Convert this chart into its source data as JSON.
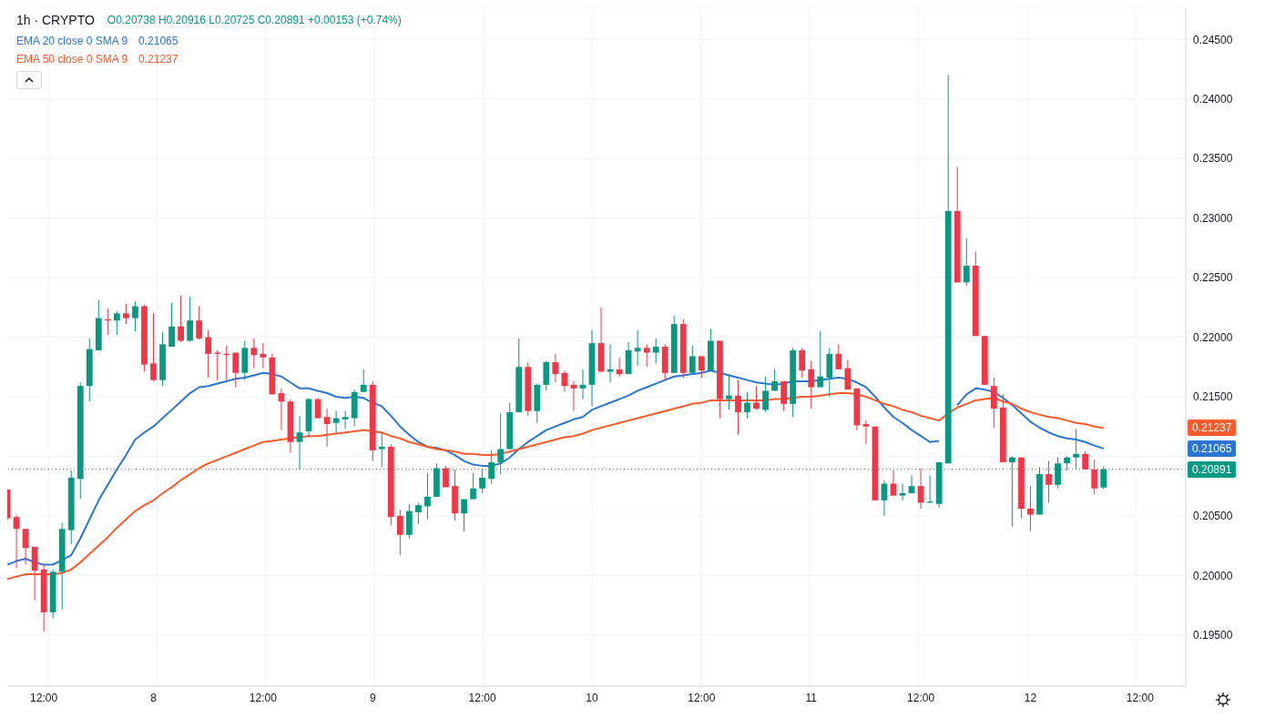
{
  "chart_data": {
    "type": "candlestick",
    "title": "1h · CRYPTO",
    "categories": [
      null,
      null,
      null,
      null,
      "12:00",
      null,
      null,
      null,
      null,
      null,
      null,
      null,
      null,
      null,
      null,
      null,
      "8",
      null,
      null,
      null,
      null,
      null,
      null,
      null,
      null,
      null,
      null,
      null,
      "12:00",
      null,
      null,
      null,
      null,
      null,
      null,
      null,
      null,
      null,
      null,
      null,
      "9",
      null,
      null,
      null,
      null,
      null,
      null,
      null,
      null,
      null,
      null,
      null,
      "12:00",
      null,
      null,
      null,
      null,
      null,
      null,
      null,
      null,
      null,
      null,
      null,
      "10",
      null,
      null,
      null,
      null,
      null,
      null,
      null,
      null,
      null,
      null,
      null,
      "12:00",
      null,
      null,
      null,
      null,
      null,
      null,
      null,
      null,
      null,
      null,
      null,
      "11",
      null,
      null,
      null,
      null,
      null,
      null,
      null,
      null,
      null,
      null,
      null,
      "12:00",
      null,
      null,
      null,
      null,
      null,
      null,
      null,
      null,
      null,
      null,
      null,
      "12",
      null,
      null,
      null,
      null,
      null,
      null,
      null,
      null,
      null,
      null,
      null,
      "12:00",
      null,
      null,
      null,
      null,
      null
    ],
    "ohlc": [
      [
        0.2072,
        0.2073,
        0.2046,
        0.2048
      ],
      [
        0.2049,
        0.2051,
        0.2006,
        0.2039
      ],
      [
        0.2039,
        0.2039,
        0.2009,
        0.2023
      ],
      [
        0.2024,
        0.2024,
        0.1979,
        0.2004
      ],
      [
        0.2005,
        0.2009,
        0.1953,
        0.1969
      ],
      [
        0.1969,
        0.2005,
        0.1964,
        0.2003
      ],
      [
        0.2003,
        0.2044,
        0.1971,
        0.2039
      ],
      [
        0.2038,
        0.2088,
        0.2026,
        0.2082
      ],
      [
        0.2081,
        0.2162,
        0.2064,
        0.2159
      ],
      [
        0.2159,
        0.2199,
        0.2146,
        0.219
      ],
      [
        0.2189,
        0.2231,
        0.2189,
        0.2216
      ],
      [
        0.2215,
        0.2224,
        0.2202,
        0.2214
      ],
      [
        0.2214,
        0.2222,
        0.2202,
        0.222
      ],
      [
        0.222,
        0.2228,
        0.2211,
        0.2216
      ],
      [
        0.2216,
        0.223,
        0.2205,
        0.2226
      ],
      [
        0.2226,
        0.2227,
        0.2171,
        0.2177
      ],
      [
        0.2178,
        0.222,
        0.2163,
        0.2164
      ],
      [
        0.2164,
        0.2204,
        0.2159,
        0.2194
      ],
      [
        0.2192,
        0.2229,
        0.2192,
        0.2209
      ],
      [
        0.2209,
        0.2235,
        0.2196,
        0.2197
      ],
      [
        0.2197,
        0.2234,
        0.2196,
        0.2214
      ],
      [
        0.2214,
        0.2226,
        0.2198,
        0.2199
      ],
      [
        0.22,
        0.2206,
        0.2166,
        0.2186
      ],
      [
        0.2187,
        0.2189,
        0.2164,
        0.2186
      ],
      [
        0.2186,
        0.2193,
        0.2164,
        0.2185
      ],
      [
        0.2187,
        0.2187,
        0.2158,
        0.217
      ],
      [
        0.217,
        0.2197,
        0.2164,
        0.2191
      ],
      [
        0.2191,
        0.2199,
        0.2174,
        0.2185
      ],
      [
        0.2186,
        0.2195,
        0.2174,
        0.2183
      ],
      [
        0.2183,
        0.2186,
        0.2152,
        0.2152
      ],
      [
        0.2153,
        0.2157,
        0.2122,
        0.2146
      ],
      [
        0.2146,
        0.2148,
        0.2103,
        0.2112
      ],
      [
        0.2112,
        0.2134,
        0.2089,
        0.212
      ],
      [
        0.2121,
        0.2149,
        0.2116,
        0.2148
      ],
      [
        0.2148,
        0.2149,
        0.2132,
        0.2132
      ],
      [
        0.2133,
        0.214,
        0.2108,
        0.2127
      ],
      [
        0.2128,
        0.2138,
        0.2119,
        0.2132
      ],
      [
        0.2131,
        0.2138,
        0.2123,
        0.2133
      ],
      [
        0.2132,
        0.2156,
        0.2125,
        0.2154
      ],
      [
        0.2154,
        0.2173,
        0.2154,
        0.216
      ],
      [
        0.216,
        0.2163,
        0.2096,
        0.2105
      ],
      [
        0.2106,
        0.212,
        0.2091,
        0.2108
      ],
      [
        0.2108,
        0.211,
        0.2042,
        0.2049
      ],
      [
        0.205,
        0.2055,
        0.2017,
        0.2034
      ],
      [
        0.2034,
        0.206,
        0.2031,
        0.2054
      ],
      [
        0.2053,
        0.2061,
        0.2043,
        0.2059
      ],
      [
        0.2058,
        0.2086,
        0.2047,
        0.2066
      ],
      [
        0.2066,
        0.2094,
        0.2066,
        0.209
      ],
      [
        0.209,
        0.2092,
        0.2074,
        0.2074
      ],
      [
        0.2075,
        0.2089,
        0.2046,
        0.2052
      ],
      [
        0.2052,
        0.2064,
        0.2037,
        0.2064
      ],
      [
        0.2064,
        0.2086,
        0.2064,
        0.2073
      ],
      [
        0.2073,
        0.2089,
        0.2069,
        0.2082
      ],
      [
        0.2081,
        0.2105,
        0.2077,
        0.2095
      ],
      [
        0.2095,
        0.2136,
        0.2085,
        0.2106
      ],
      [
        0.2106,
        0.2145,
        0.2106,
        0.2137
      ],
      [
        0.2137,
        0.2199,
        0.2137,
        0.2175
      ],
      [
        0.2175,
        0.2179,
        0.2134,
        0.2138
      ],
      [
        0.2138,
        0.2161,
        0.2128,
        0.216
      ],
      [
        0.216,
        0.218,
        0.2155,
        0.2179
      ],
      [
        0.2179,
        0.2186,
        0.2162,
        0.2169
      ],
      [
        0.217,
        0.2172,
        0.2154,
        0.2159
      ],
      [
        0.216,
        0.2163,
        0.2138,
        0.2157
      ],
      [
        0.2157,
        0.2173,
        0.2148,
        0.216
      ],
      [
        0.216,
        0.2206,
        0.2142,
        0.2195
      ],
      [
        0.2195,
        0.2225,
        0.2171,
        0.2171
      ],
      [
        0.2171,
        0.2194,
        0.2162,
        0.2173
      ],
      [
        0.2173,
        0.2183,
        0.2167,
        0.2169
      ],
      [
        0.2169,
        0.2196,
        0.2169,
        0.2189
      ],
      [
        0.2188,
        0.2206,
        0.2176,
        0.2191
      ],
      [
        0.2191,
        0.2194,
        0.2175,
        0.2187
      ],
      [
        0.2187,
        0.2199,
        0.2178,
        0.2192
      ],
      [
        0.2192,
        0.2194,
        0.2164,
        0.217
      ],
      [
        0.217,
        0.2218,
        0.217,
        0.2211
      ],
      [
        0.2211,
        0.2215,
        0.2166,
        0.217
      ],
      [
        0.217,
        0.2193,
        0.217,
        0.2184
      ],
      [
        0.2184,
        0.2184,
        0.2166,
        0.2172
      ],
      [
        0.2172,
        0.2207,
        0.2172,
        0.2197
      ],
      [
        0.2197,
        0.2197,
        0.2132,
        0.2148
      ],
      [
        0.2148,
        0.2169,
        0.2139,
        0.2151
      ],
      [
        0.2151,
        0.2164,
        0.2118,
        0.2137
      ],
      [
        0.2137,
        0.2154,
        0.2132,
        0.2145
      ],
      [
        0.2145,
        0.2159,
        0.2139,
        0.214
      ],
      [
        0.2139,
        0.2167,
        0.2137,
        0.2155
      ],
      [
        0.2155,
        0.2173,
        0.2155,
        0.2163
      ],
      [
        0.2163,
        0.2163,
        0.2138,
        0.2144
      ],
      [
        0.2144,
        0.2191,
        0.2133,
        0.2189
      ],
      [
        0.2189,
        0.2191,
        0.2166,
        0.2172
      ],
      [
        0.2173,
        0.218,
        0.214,
        0.2158
      ],
      [
        0.2158,
        0.2205,
        0.2158,
        0.2167
      ],
      [
        0.2166,
        0.2191,
        0.215,
        0.2186
      ],
      [
        0.2186,
        0.2194,
        0.2173,
        0.2173
      ],
      [
        0.2174,
        0.2181,
        0.2156,
        0.2156
      ],
      [
        0.2157,
        0.2157,
        0.2122,
        0.2126
      ],
      [
        0.2127,
        0.213,
        0.211,
        0.2125
      ],
      [
        0.2125,
        0.2125,
        0.2063,
        0.2063
      ],
      [
        0.2063,
        0.208,
        0.205,
        0.2077
      ],
      [
        0.2077,
        0.2088,
        0.2067,
        0.2067
      ],
      [
        0.2067,
        0.2077,
        0.2063,
        0.2069
      ],
      [
        0.2069,
        0.2084,
        0.2069,
        0.2075
      ],
      [
        0.2075,
        0.209,
        0.2056,
        0.2061
      ],
      [
        0.2061,
        0.2084,
        0.2061,
        0.2062
      ],
      [
        0.206,
        0.2095,
        0.2057,
        0.2095
      ],
      [
        0.2094,
        0.242,
        0.2094,
        0.2306
      ],
      [
        0.2306,
        0.2343,
        0.2246,
        0.2246
      ],
      [
        0.2246,
        0.2283,
        0.2243,
        0.226
      ],
      [
        0.226,
        0.2272,
        0.2201,
        0.2201
      ],
      [
        0.2201,
        0.2201,
        0.216,
        0.216
      ],
      [
        0.2159,
        0.2166,
        0.2124,
        0.214
      ],
      [
        0.2141,
        0.2152,
        0.2095,
        0.2095
      ],
      [
        0.2095,
        0.21,
        0.2041,
        0.2099
      ],
      [
        0.2099,
        0.2099,
        0.2048,
        0.2056
      ],
      [
        0.2056,
        0.2075,
        0.2037,
        0.2051
      ],
      [
        0.2051,
        0.2091,
        0.2051,
        0.2085
      ],
      [
        0.2085,
        0.2096,
        0.2061,
        0.2076
      ],
      [
        0.2076,
        0.2099,
        0.2073,
        0.2094
      ],
      [
        0.2094,
        0.21,
        0.2088,
        0.2099
      ],
      [
        0.2099,
        0.2123,
        0.2089,
        0.2102
      ],
      [
        0.2102,
        0.2104,
        0.2089,
        0.2089
      ],
      [
        0.2089,
        0.2097,
        0.2068,
        0.2073
      ],
      [
        0.20738,
        0.20916,
        0.20725,
        0.20891
      ],
      null,
      null,
      null,
      null,
      null,
      null,
      null,
      null,
      null
    ],
    "colors": [
      "#f23645",
      "#f23645",
      "#f23645",
      "#f23645",
      "#f23645",
      "#089981",
      "#089981",
      "#089981",
      "#089981",
      "#089981",
      "#089981",
      "#f23645",
      "#089981",
      "#f23645",
      "#089981",
      "#f23645",
      "#f23645",
      "#089981",
      "#089981",
      "#f23645",
      "#089981",
      "#f23645",
      "#f23645",
      "#f23645",
      "#f23645",
      "#f23645",
      "#089981",
      "#f23645",
      "#f23645",
      "#f23645",
      "#f23645",
      "#f23645",
      "#089981",
      "#089981",
      "#f23645",
      "#f23645",
      "#089981",
      "#089981",
      "#089981",
      "#089981",
      "#f23645",
      "#089981",
      "#f23645",
      "#f23645",
      "#089981",
      "#089981",
      "#089981",
      "#089981",
      "#f23645",
      "#f23645",
      "#089981",
      "#089981",
      "#089981",
      "#089981",
      "#089981",
      "#089981",
      "#089981",
      "#f23645",
      "#089981",
      "#089981",
      "#f23645",
      "#f23645",
      "#f23645",
      "#089981",
      "#089981",
      "#f23645",
      "#089981",
      "#f23645",
      "#089981",
      "#089981",
      "#f23645",
      "#089981",
      "#f23645",
      "#089981",
      "#f23645",
      "#089981",
      "#f23645",
      "#089981",
      "#f23645",
      "#089981",
      "#f23645",
      "#089981",
      "#f23645",
      "#089981",
      "#089981",
      "#f23645",
      "#089981",
      "#f23645",
      "#f23645",
      "#089981",
      "#089981",
      "#f23645",
      "#f23645",
      "#f23645",
      "#f23645",
      "#f23645",
      "#089981",
      "#f23645",
      "#089981",
      "#089981",
      "#f23645",
      "#089981",
      "#089981",
      "#089981",
      "#f23645",
      "#089981",
      "#f23645",
      "#f23645",
      "#f23645",
      "#f23645",
      "#089981",
      "#f23645",
      "#f23645",
      "#089981",
      "#f23645",
      "#089981",
      "#089981",
      "#089981",
      "#f23645",
      "#f23645",
      "#089981",
      null,
      null,
      null,
      null,
      null,
      null,
      null,
      null,
      null
    ],
    "series": [
      {
        "name": "EMA 20 close 0 SMA 9",
        "type": "line",
        "color": "#2a76d2",
        "values": [
          0.2009,
          0.2012,
          0.2014,
          0.2011,
          0.2009,
          0.2009,
          0.2013,
          0.2017,
          0.2031,
          0.2047,
          0.2063,
          0.2076,
          0.2089,
          0.2101,
          0.2114,
          0.212,
          0.2125,
          0.2132,
          0.2139,
          0.2146,
          0.2153,
          0.2158,
          0.2159,
          0.2161,
          0.2163,
          0.2165,
          0.2166,
          0.2168,
          0.217,
          0.2169,
          0.2167,
          0.2162,
          0.2157,
          0.2157,
          0.2155,
          0.2153,
          0.215,
          0.2149,
          0.215,
          0.2149,
          0.2145,
          0.2142,
          0.2134,
          0.2125,
          0.2118,
          0.2112,
          0.2108,
          0.2107,
          0.2105,
          0.2101,
          0.2096,
          0.2093,
          0.2092,
          0.2092,
          0.2094,
          0.2099,
          0.2106,
          0.2112,
          0.2117,
          0.2122,
          0.2125,
          0.2128,
          0.2131,
          0.2133,
          0.2139,
          0.2142,
          0.2145,
          0.2148,
          0.2151,
          0.2155,
          0.2158,
          0.2161,
          0.2164,
          0.2167,
          0.2168,
          0.2169,
          0.217,
          0.2172,
          0.217,
          0.2168,
          0.2166,
          0.2164,
          0.2162,
          0.2161,
          0.216,
          0.2161,
          0.2163,
          0.2163,
          0.2163,
          0.2164,
          0.2165,
          0.2166,
          0.2165,
          0.2162,
          0.2158,
          0.215,
          0.2141,
          0.2133,
          0.2128,
          0.2122,
          0.2117,
          0.2112,
          0.2113,
          null,
          0.2143,
          0.2152,
          0.2157,
          0.2156,
          0.2154,
          0.2149,
          0.2143,
          0.2136,
          0.2129,
          0.2124,
          0.212,
          0.2117,
          0.2115,
          0.2114,
          0.2112,
          0.2109,
          0.21065,
          null,
          null,
          null,
          null,
          null,
          null,
          null,
          null,
          null
        ]
      },
      {
        "name": "EMA 50 close 0 SMA 9",
        "type": "line",
        "color": "#fe5a2b",
        "values": [
          0.1997,
          0.1999,
          0.2001,
          0.2001,
          0.2001,
          0.2001,
          0.2002,
          0.2005,
          0.2011,
          0.2018,
          0.2025,
          0.2032,
          0.204,
          0.2047,
          0.2054,
          0.2059,
          0.2063,
          0.2069,
          0.2074,
          0.208,
          0.2085,
          0.209,
          0.2094,
          0.2097,
          0.21,
          0.2103,
          0.2106,
          0.2109,
          0.2112,
          0.2113,
          0.2114,
          0.2115,
          0.2116,
          0.2117,
          0.2117,
          0.2118,
          0.2119,
          0.212,
          0.2121,
          0.2122,
          0.2121,
          0.212,
          0.2117,
          0.2115,
          0.2112,
          0.211,
          0.2108,
          0.2106,
          0.2105,
          0.2104,
          0.2102,
          0.2102,
          0.2101,
          0.2101,
          0.2102,
          0.2104,
          0.2106,
          0.2108,
          0.211,
          0.2112,
          0.2114,
          0.2116,
          0.2117,
          0.2119,
          0.2122,
          0.2124,
          0.2126,
          0.2128,
          0.213,
          0.2132,
          0.2134,
          0.2136,
          0.2138,
          0.214,
          0.2142,
          0.2144,
          0.2145,
          0.2147,
          0.2147,
          0.2147,
          0.2147,
          0.2147,
          0.2147,
          0.2147,
          0.2148,
          0.2148,
          0.2149,
          0.215,
          0.215,
          0.2151,
          0.2152,
          0.2153,
          0.2153,
          0.2152,
          0.215,
          0.2147,
          0.2144,
          0.2142,
          0.2139,
          0.2137,
          0.2134,
          0.2132,
          0.213,
          0.2136,
          0.2141,
          0.2144,
          0.2147,
          0.2148,
          0.2149,
          0.2146,
          0.2144,
          0.214,
          0.2137,
          0.2135,
          0.2133,
          0.2132,
          0.213,
          0.2128,
          0.2127,
          0.2125,
          0.21237,
          null,
          null,
          null,
          null,
          null,
          null,
          null,
          null,
          null
        ]
      }
    ],
    "ylim": [
      0.1907,
      0.2477
    ],
    "yticks": [
      {
        "value": 0.195,
        "label": "0.19500"
      },
      {
        "value": 0.2,
        "label": "0.20000"
      },
      {
        "value": 0.205,
        "label": "0.20500"
      },
      {
        "value": 0.21,
        "label": null
      },
      {
        "value": 0.215,
        "label": "0.21500"
      },
      {
        "value": 0.22,
        "label": "0.22000"
      },
      {
        "value": 0.225,
        "label": "0.22500"
      },
      {
        "value": 0.23,
        "label": "0.23000"
      },
      {
        "value": 0.235,
        "label": "0.23500"
      },
      {
        "value": 0.24,
        "label": "0.24000"
      },
      {
        "value": 0.245,
        "label": "0.24500"
      }
    ],
    "ref_lines": [
      {
        "axis": "y",
        "value": 0.20891,
        "label": "0.20891",
        "color": "#089981",
        "line_style": "dotted"
      }
    ],
    "annotations": [
      "O0.20738 H0.20916 L0.20725 C0.20891 +0.00153 (+0.74%)",
      "0.21065",
      "0.21237",
      "0.21065",
      "0.21237"
    ],
    "grid": true,
    "legend": "top left"
  }
}
